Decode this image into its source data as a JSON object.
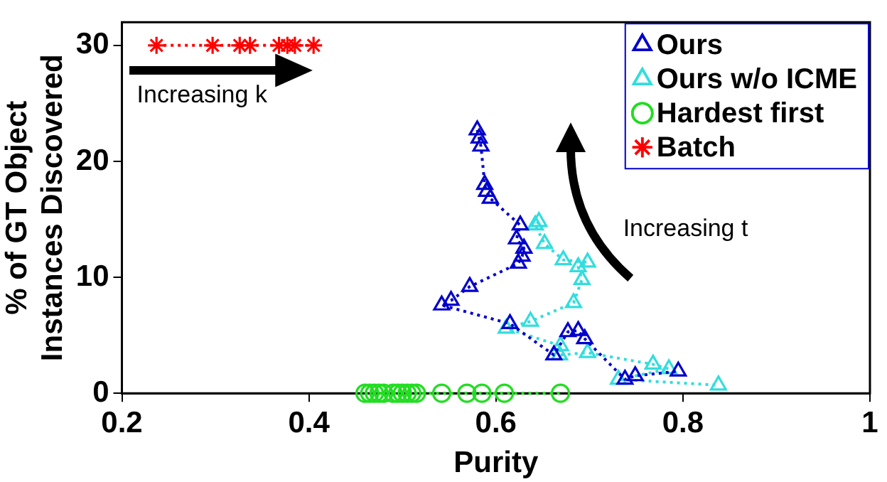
{
  "chart_data": {
    "type": "line",
    "xlabel": "Purity",
    "ylabel": "% of GT Object\nInstances Discovered",
    "xlim": [
      0.2,
      1
    ],
    "xticks": [
      0.2,
      0.4,
      0.6,
      0.8,
      1
    ],
    "ylim": [
      0,
      32
    ],
    "yticks": [
      0,
      10,
      20,
      30
    ],
    "grid": false,
    "legend": "top right",
    "line_style": "dotted",
    "annotations": [
      "Increasing k",
      "Increasing t"
    ],
    "series": [
      {
        "name": "Ours",
        "color": "#0000cc",
        "marker": "triangle",
        "x": [
          0.58,
          0.582,
          0.584,
          0.588,
          0.59,
          0.594,
          0.626,
          0.622,
          0.63,
          0.628,
          0.624,
          0.572,
          0.552,
          0.542,
          0.615,
          0.662,
          0.677,
          0.688,
          0.695,
          0.738,
          0.749,
          0.795
        ],
        "values": [
          22.7,
          22,
          21.3,
          18,
          17.4,
          16.8,
          14.5,
          13.3,
          12.5,
          11.8,
          11.2,
          9.2,
          8,
          7.6,
          6,
          3.3,
          5.3,
          5.4,
          4.7,
          1.2,
          1.5,
          1.9
        ]
      },
      {
        "name": "Ours w/o ICME",
        "color": "#33dddd",
        "marker": "triangle",
        "x": [
          0.646,
          0.642,
          0.652,
          0.672,
          0.698,
          0.688,
          0.692,
          0.683,
          0.637,
          0.611,
          0.669,
          0.668,
          0.698,
          0.768,
          0.785,
          0.731,
          0.838
        ],
        "values": [
          14.8,
          14.5,
          12.9,
          11.5,
          11.3,
          10.9,
          9.8,
          7.8,
          6.2,
          5.6,
          4.1,
          3.3,
          3.5,
          2.5,
          2.1,
          1.2,
          0.7
        ]
      },
      {
        "name": "Hardest first",
        "color": "#22dd22",
        "marker": "circle",
        "x": [
          0.46,
          0.465,
          0.47,
          0.475,
          0.48,
          0.49,
          0.495,
          0.5,
          0.505,
          0.51,
          0.515,
          0.542,
          0.569,
          0.585,
          0.609,
          0.669
        ],
        "values": [
          0,
          0,
          0,
          0,
          0,
          0,
          0,
          0,
          0,
          0,
          0,
          0,
          0,
          0,
          0,
          0
        ]
      },
      {
        "name": "Batch",
        "color": "#ff0000",
        "marker": "cross",
        "x": [
          0.237,
          0.297,
          0.326,
          0.337,
          0.368,
          0.377,
          0.385,
          0.405
        ],
        "values": [
          30,
          30,
          30,
          30,
          30,
          30,
          30,
          30
        ]
      }
    ]
  }
}
